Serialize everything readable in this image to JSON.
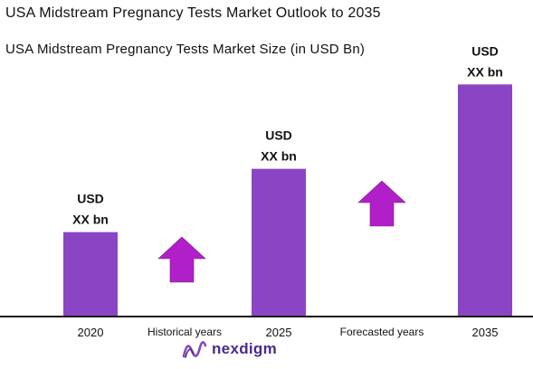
{
  "header": {
    "title": "USA Midstream Pregnancy Tests Market Outlook to 2035",
    "subtitle": "USA Midstream Pregnancy Tests Market Size (in USD Bn)"
  },
  "colors": {
    "bar": "#8b44c4",
    "arrow": "#b11fc8",
    "axis": "#111111"
  },
  "chart_data": {
    "type": "bar",
    "title": "USA Midstream Pregnancy Tests Market Size (in USD Bn)",
    "xlabel": "",
    "ylabel": "",
    "categories": [
      "2020",
      "2025",
      "2035"
    ],
    "values": [
      100,
      175,
      275
    ],
    "value_labels": [
      [
        "USD",
        "XX bn"
      ],
      [
        "USD",
        "XX bn"
      ],
      [
        "USD",
        "XX bn"
      ]
    ],
    "ylim": [
      0,
      300
    ],
    "grid": false,
    "legend": "none",
    "period_labels": [
      {
        "text": "Historical years",
        "after_category": 0
      },
      {
        "text": "Forecasted years",
        "after_category": 1
      }
    ],
    "trend_arrows": [
      {
        "between": [
          0,
          1
        ],
        "direction": "up"
      },
      {
        "between": [
          1,
          2
        ],
        "direction": "up"
      }
    ]
  },
  "logo": {
    "text": "nexdigm",
    "icon": "nexdigm-logo-icon"
  }
}
